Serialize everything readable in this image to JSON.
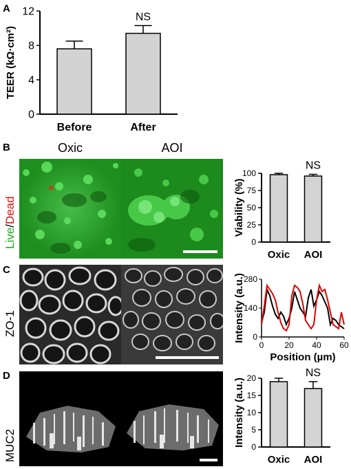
{
  "panels": {
    "a": {
      "letter": "A"
    },
    "b": {
      "letter": "B",
      "row_label_live": "Live",
      "row_label_sep": "/",
      "row_label_dead": "Dead"
    },
    "c": {
      "letter": "C",
      "row_label": "ZO-1"
    },
    "d": {
      "letter": "D",
      "row_label": "MUC2"
    }
  },
  "columns": {
    "oxic": "Oxic",
    "aoi": "AOI"
  },
  "colors": {
    "bar_fill": "#d3d3d3",
    "live": "#1fa81f",
    "dead": "#e01010",
    "trace_1": "#000000",
    "trace_2": "#e00000"
  },
  "chart_data": [
    {
      "type": "bar",
      "id": "teer",
      "categories": [
        "Before",
        "After"
      ],
      "values": [
        7.6,
        9.4
      ],
      "errors": [
        0.9,
        0.9
      ],
      "ylabel": "TEER (kΩ·cm²)",
      "ylim": [
        0,
        12
      ],
      "yticks": [
        0,
        4,
        8,
        12
      ],
      "annotation": "NS"
    },
    {
      "type": "bar",
      "id": "viability",
      "categories": [
        "Oxic",
        "AOI"
      ],
      "values": [
        98,
        96
      ],
      "errors": [
        2,
        2.5
      ],
      "ylabel": "Viability (%)",
      "ylim": [
        0,
        100
      ],
      "yticks": [
        0,
        25,
        50,
        75,
        100
      ],
      "annotation": "NS"
    },
    {
      "type": "line",
      "id": "intensity_profile",
      "ylabel": "Intensity (a.u.)",
      "xlabel": "Position (µm)",
      "xlim": [
        0,
        60
      ],
      "ylim": [
        0,
        280
      ],
      "xticks": [
        0,
        20,
        40,
        60
      ],
      "yticks": [
        0,
        140,
        280
      ],
      "series": [
        {
          "x": [
            0,
            2,
            4,
            6,
            8,
            10,
            12,
            14,
            16,
            18,
            20,
            22,
            24,
            26,
            28,
            30,
            32,
            34,
            36,
            38,
            40,
            42,
            44,
            46,
            48,
            50,
            52,
            54,
            56,
            58,
            60
          ],
          "y": [
            70,
            120,
            230,
            200,
            150,
            110,
            90,
            120,
            100,
            60,
            90,
            140,
            220,
            180,
            140,
            120,
            100,
            190,
            230,
            150,
            180,
            220,
            200,
            170,
            140,
            60,
            90,
            80,
            60,
            50,
            40
          ]
        },
        {
          "x": [
            0,
            2,
            4,
            6,
            8,
            10,
            12,
            14,
            16,
            18,
            20,
            22,
            24,
            26,
            28,
            30,
            32,
            34,
            36,
            38,
            40,
            42,
            44,
            46,
            48,
            50,
            52,
            54,
            56,
            58,
            60
          ],
          "y": [
            60,
            150,
            250,
            230,
            210,
            180,
            120,
            70,
            40,
            30,
            60,
            200,
            250,
            240,
            220,
            160,
            80,
            60,
            40,
            60,
            180,
            250,
            220,
            230,
            180,
            120,
            60,
            50,
            40,
            120,
            60
          ]
        }
      ]
    },
    {
      "type": "bar",
      "id": "muc2_intensity",
      "categories": [
        "Oxic",
        "AOI"
      ],
      "values": [
        19,
        17
      ],
      "errors": [
        1,
        2
      ],
      "ylabel": "Intensity (a.u.)",
      "ylim": [
        0,
        20
      ],
      "yticks": [
        0,
        5,
        10,
        15,
        20
      ],
      "annotation": "NS"
    }
  ]
}
